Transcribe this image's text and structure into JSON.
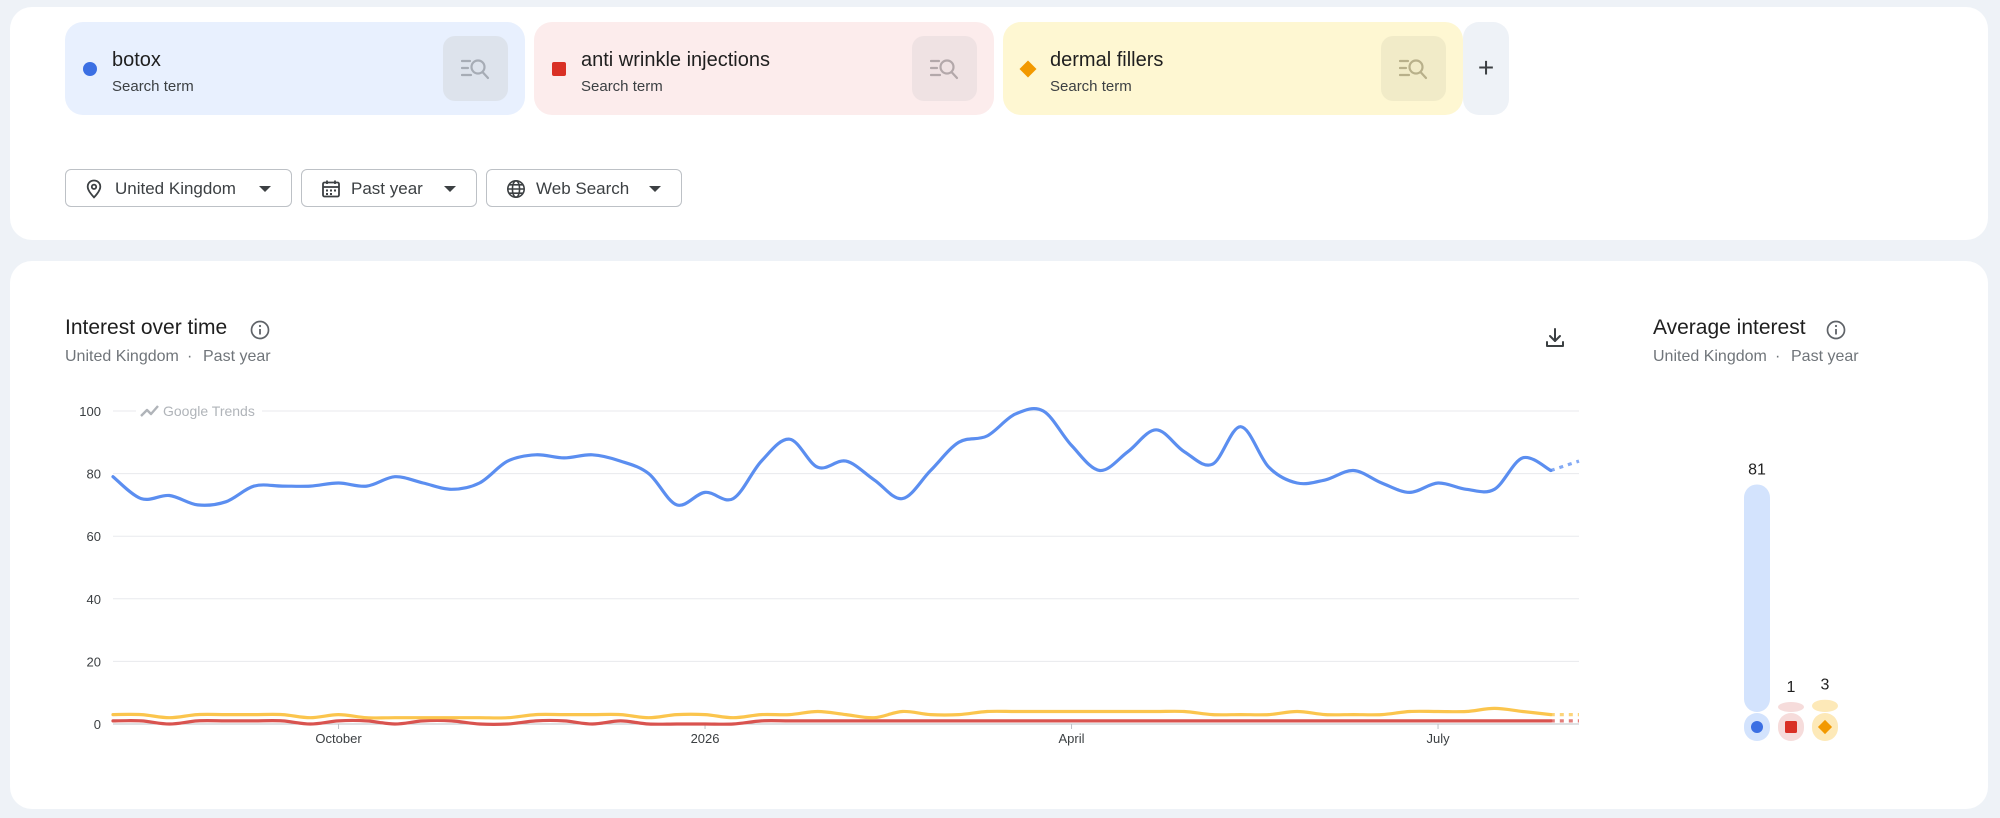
{
  "terms": [
    {
      "name": "botox",
      "sub": "Search term",
      "color": "#3b6fe3",
      "chip_bg": "#e8f0fe",
      "btn_bg": "#dde3ec",
      "marker": "circle"
    },
    {
      "name": "anti wrinkle injections",
      "sub": "Search term",
      "color": "#d93025",
      "chip_bg": "#fcecec",
      "btn_bg": "#efe2e3",
      "marker": "square"
    },
    {
      "name": "dermal fillers",
      "sub": "Search term",
      "color": "#f29900",
      "chip_bg": "#fef7d2",
      "btn_bg": "#f1ebc8",
      "marker": "diamond"
    }
  ],
  "add_label": "+",
  "filters": {
    "location": "United Kingdom",
    "period": "Past year",
    "source": "Web Search"
  },
  "interest": {
    "title": "Interest over time",
    "location": "United Kingdom",
    "separator": "·",
    "period": "Past year"
  },
  "average": {
    "title": "Average interest",
    "location": "United Kingdom",
    "separator": "·",
    "period": "Past year"
  },
  "chart_data": [
    {
      "type": "line",
      "title": "Interest over time",
      "watermark": "Google Trends",
      "ylim": [
        0,
        100
      ],
      "yticks": [
        0,
        20,
        40,
        60,
        80,
        100
      ],
      "grid": true,
      "xticks": [
        {
          "label": "October",
          "index": 8
        },
        {
          "label": "2026",
          "index": 21
        },
        {
          "label": "April",
          "index": 34
        },
        {
          "label": "July",
          "index": 47
        }
      ],
      "partial_last_point": true,
      "series": [
        {
          "name": "botox",
          "color": "#5b8ef0",
          "values": [
            79,
            72,
            73,
            70,
            71,
            76,
            76,
            76,
            77,
            76,
            79,
            77,
            75,
            77,
            84,
            86,
            85,
            86,
            84,
            80,
            70,
            74,
            72,
            84,
            91,
            82,
            84,
            78,
            72,
            81,
            90,
            92,
            99,
            100,
            89,
            81,
            87,
            94,
            87,
            83,
            95,
            82,
            77,
            78,
            81,
            77,
            74,
            77,
            75,
            75,
            85,
            81,
            84
          ]
        },
        {
          "name": "anti wrinkle injections",
          "color": "#d9534f",
          "values": [
            1,
            1,
            0,
            1,
            1,
            1,
            1,
            0,
            1,
            1,
            0,
            1,
            1,
            0,
            0,
            1,
            1,
            0,
            1,
            0,
            0,
            0,
            0,
            1,
            1,
            1,
            1,
            1,
            1,
            1,
            1,
            1,
            1,
            1,
            1,
            1,
            1,
            1,
            1,
            1,
            1,
            1,
            1,
            1,
            1,
            1,
            1,
            1,
            1,
            1,
            1,
            1,
            1
          ]
        },
        {
          "name": "dermal fillers",
          "color": "#fbc54d",
          "values": [
            3,
            3,
            2,
            3,
            3,
            3,
            3,
            2,
            3,
            2,
            2,
            2,
            2,
            2,
            2,
            3,
            3,
            3,
            3,
            2,
            3,
            3,
            2,
            3,
            3,
            4,
            3,
            2,
            4,
            3,
            3,
            4,
            4,
            4,
            4,
            4,
            4,
            4,
            4,
            3,
            3,
            3,
            4,
            3,
            3,
            3,
            4,
            4,
            4,
            5,
            4,
            3,
            3
          ]
        }
      ]
    },
    {
      "type": "bar",
      "title": "Average interest",
      "categories": [
        "botox",
        "anti wrinkle injections",
        "dermal fillers"
      ],
      "values": [
        81,
        1,
        3
      ],
      "ylim": [
        0,
        100
      ]
    }
  ]
}
